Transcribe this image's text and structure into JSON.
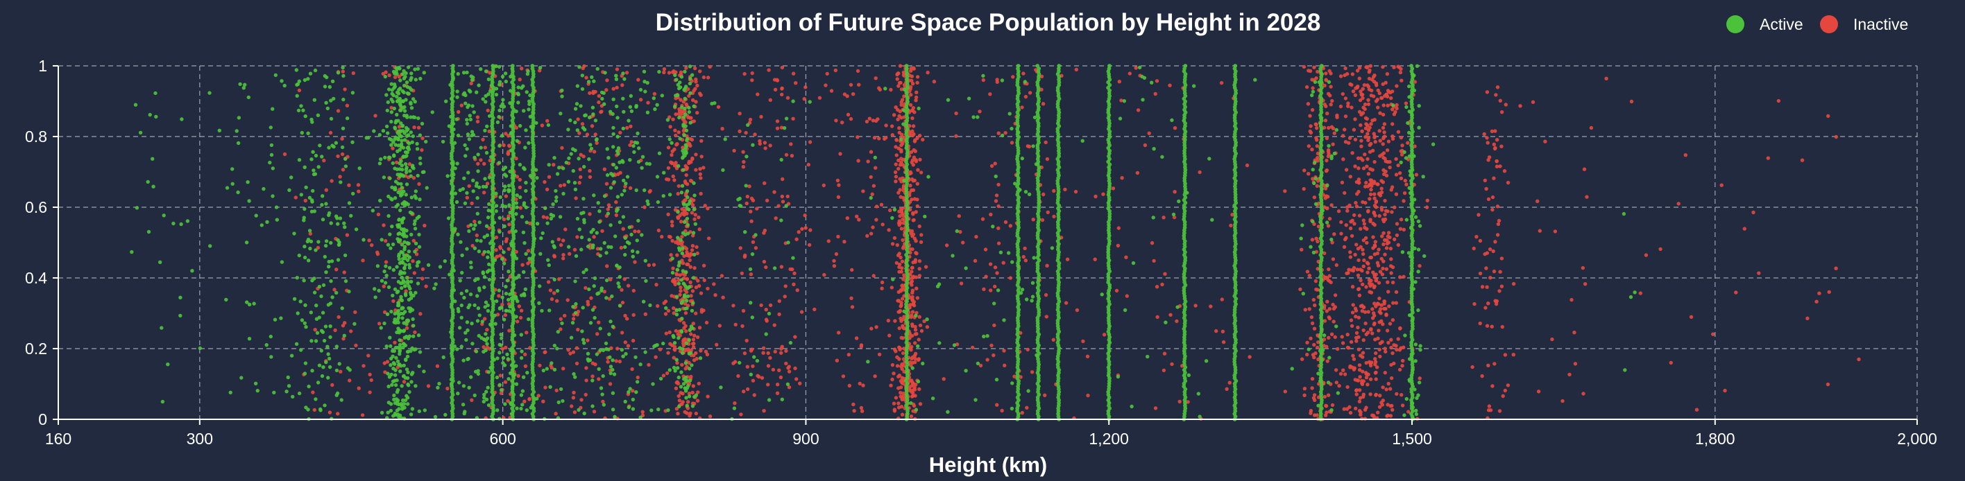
{
  "chart_data": {
    "type": "scatter",
    "title": "Distribution of Future Space Population by Height in 2028",
    "xlabel": "Height (km)",
    "ylabel": "",
    "xlim": [
      160,
      2000
    ],
    "ylim": [
      0,
      1
    ],
    "x_ticks": [
      {
        "value": 160,
        "label": "160"
      },
      {
        "value": 300,
        "label": "300"
      },
      {
        "value": 600,
        "label": "600"
      },
      {
        "value": 900,
        "label": "900"
      },
      {
        "value": 1200,
        "label": "1,200"
      },
      {
        "value": 1500,
        "label": "1,500"
      },
      {
        "value": 1800,
        "label": "1,800"
      },
      {
        "value": 2000,
        "label": "2,000"
      }
    ],
    "y_ticks": [
      {
        "value": 0,
        "label": "0"
      },
      {
        "value": 0.2,
        "label": "0.2"
      },
      {
        "value": 0.4,
        "label": "0.4"
      },
      {
        "value": 0.6,
        "label": "0.6"
      },
      {
        "value": 0.8,
        "label": "0.8"
      },
      {
        "value": 1,
        "label": "1"
      }
    ],
    "grid": true,
    "legend_position": "top-right",
    "jitter": "vertical (y is random 0–1)",
    "series": [
      {
        "name": "Active",
        "color": "#4cc23a",
        "clusters": [
          {
            "center": 260,
            "spread": 30,
            "count": 25
          },
          {
            "center": 360,
            "spread": 35,
            "count": 45
          },
          {
            "center": 420,
            "spread": 40,
            "count": 200
          },
          {
            "center": 500,
            "spread": 15,
            "count": 500
          },
          {
            "center": 560,
            "spread": 20,
            "count": 120
          },
          {
            "center": 600,
            "spread": 35,
            "count": 300
          },
          {
            "center": 700,
            "spread": 60,
            "count": 320
          },
          {
            "center": 780,
            "spread": 10,
            "count": 150
          },
          {
            "center": 850,
            "spread": 40,
            "count": 40
          },
          {
            "center": 1000,
            "spread": 40,
            "count": 30
          },
          {
            "center": 1100,
            "spread": 60,
            "count": 50
          },
          {
            "center": 1250,
            "spread": 60,
            "count": 30
          },
          {
            "center": 1410,
            "spread": 20,
            "count": 40
          },
          {
            "center": 1500,
            "spread": 10,
            "count": 70
          },
          {
            "center": 1720,
            "spread": 30,
            "count": 4
          }
        ],
        "shells": [
          550,
          590,
          610,
          630,
          1000,
          1110,
          1130,
          1150,
          1200,
          1275,
          1325,
          1410,
          1500
        ]
      },
      {
        "name": "Inactive",
        "color": "#e5463e",
        "clusters": [
          {
            "center": 440,
            "spread": 40,
            "count": 60
          },
          {
            "center": 500,
            "spread": 25,
            "count": 80
          },
          {
            "center": 600,
            "spread": 35,
            "count": 180
          },
          {
            "center": 700,
            "spread": 50,
            "count": 220
          },
          {
            "center": 780,
            "spread": 15,
            "count": 380
          },
          {
            "center": 860,
            "spread": 40,
            "count": 150
          },
          {
            "center": 1000,
            "spread": 10,
            "count": 500
          },
          {
            "center": 960,
            "spread": 50,
            "count": 120
          },
          {
            "center": 1100,
            "spread": 60,
            "count": 110
          },
          {
            "center": 1250,
            "spread": 80,
            "count": 70
          },
          {
            "center": 1410,
            "spread": 12,
            "count": 200
          },
          {
            "center": 1460,
            "spread": 30,
            "count": 600
          },
          {
            "center": 1580,
            "spread": 15,
            "count": 80
          },
          {
            "center": 1650,
            "spread": 40,
            "count": 20
          },
          {
            "center": 1800,
            "spread": 80,
            "count": 20
          },
          {
            "center": 1920,
            "spread": 40,
            "count": 8
          }
        ]
      }
    ]
  }
}
